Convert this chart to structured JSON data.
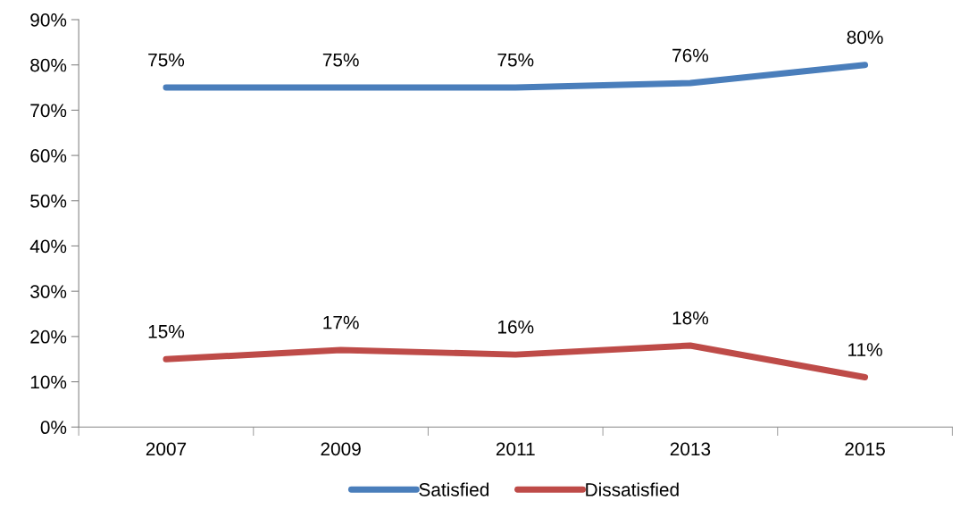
{
  "chart_data": {
    "type": "line",
    "categories": [
      "2007",
      "2009",
      "2011",
      "2013",
      "2015"
    ],
    "series": [
      {
        "name": "Satisfied",
        "color": "#4a7ebb",
        "values": [
          75,
          75,
          75,
          76,
          80
        ],
        "value_labels": [
          "75%",
          "75%",
          "75%",
          "76%",
          "80%"
        ]
      },
      {
        "name": "Dissatisfied",
        "color": "#be4b48",
        "values": [
          15,
          17,
          16,
          18,
          11
        ],
        "value_labels": [
          "15%",
          "17%",
          "16%",
          "18%",
          "11%"
        ]
      }
    ],
    "ylim": [
      0,
      90
    ],
    "yticks": [
      {
        "value": 0,
        "label": "0%"
      },
      {
        "value": 10,
        "label": "10%"
      },
      {
        "value": 20,
        "label": "20%"
      },
      {
        "value": 30,
        "label": "30%"
      },
      {
        "value": 40,
        "label": "40%"
      },
      {
        "value": 50,
        "label": "50%"
      },
      {
        "value": 60,
        "label": "60%"
      },
      {
        "value": 70,
        "label": "70%"
      },
      {
        "value": 80,
        "label": "80%"
      },
      {
        "value": 90,
        "label": "90%"
      }
    ],
    "grid": false,
    "legend": "bottom",
    "marker": "none",
    "line_style": "solid"
  }
}
